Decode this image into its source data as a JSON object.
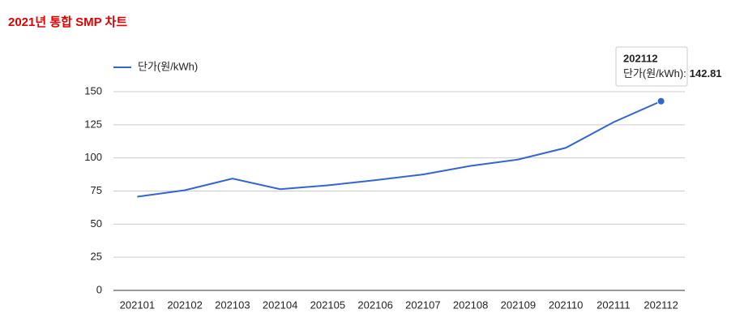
{
  "chart_data": {
    "type": "line",
    "title": "2021년 통합 SMP 차트",
    "categories": [
      "202101",
      "202102",
      "202103",
      "202104",
      "202105",
      "202106",
      "202107",
      "202108",
      "202109",
      "202110",
      "202111",
      "202112"
    ],
    "series": [
      {
        "name": "단가(원/kWh)",
        "color": "#3366cc",
        "values": [
          70.7,
          75.6,
          84.4,
          76.4,
          79.3,
          83.2,
          87.5,
          94.0,
          98.8,
          107.6,
          126.9,
          142.81
        ]
      }
    ],
    "ylim": [
      0,
      150
    ],
    "yticks": [
      0,
      25,
      50,
      75,
      100,
      125,
      150
    ],
    "grid": true,
    "legend": "top-left",
    "tooltip": {
      "label": "단가(원/kWh):"
    }
  }
}
